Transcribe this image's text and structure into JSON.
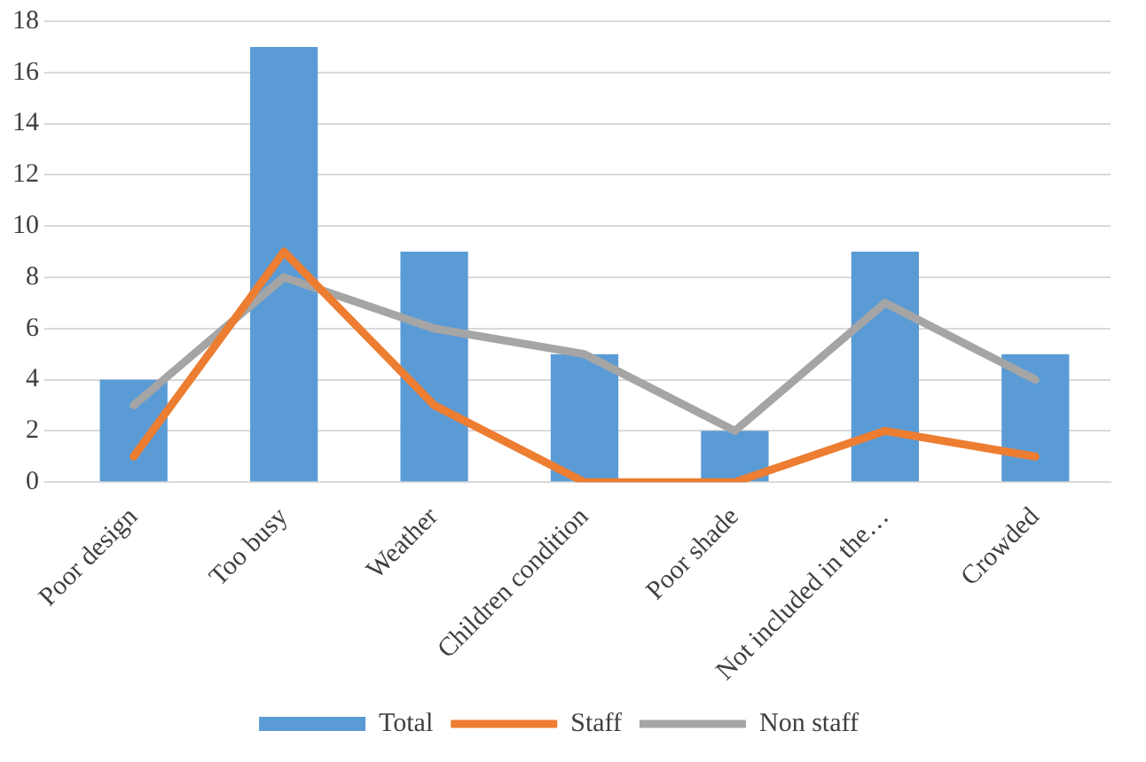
{
  "chart_data": {
    "type": "bar",
    "categories": [
      "Poor design",
      "Too busy",
      "Weather",
      "Children condition",
      "Poor shade",
      "Not included in the…",
      "Crowded"
    ],
    "series": [
      {
        "name": "Total",
        "color": "#5b9bd5",
        "values": [
          4,
          17,
          9,
          5,
          2,
          9,
          5
        ]
      },
      {
        "name": "Staff",
        "type": "line",
        "color": "#ed7d31",
        "values": [
          1,
          9,
          3,
          0,
          0,
          2,
          1
        ]
      },
      {
        "name": "Non staff",
        "type": "line",
        "color": "#a5a5a5",
        "values": [
          3,
          8,
          6,
          5,
          2,
          7,
          4
        ]
      }
    ],
    "ylim": [
      0,
      18
    ],
    "yticks": [
      0,
      2,
      4,
      6,
      8,
      10,
      12,
      14,
      16,
      18
    ],
    "grid": "y",
    "legend": "bottom",
    "marker": "none",
    "line_style": "solid"
  }
}
